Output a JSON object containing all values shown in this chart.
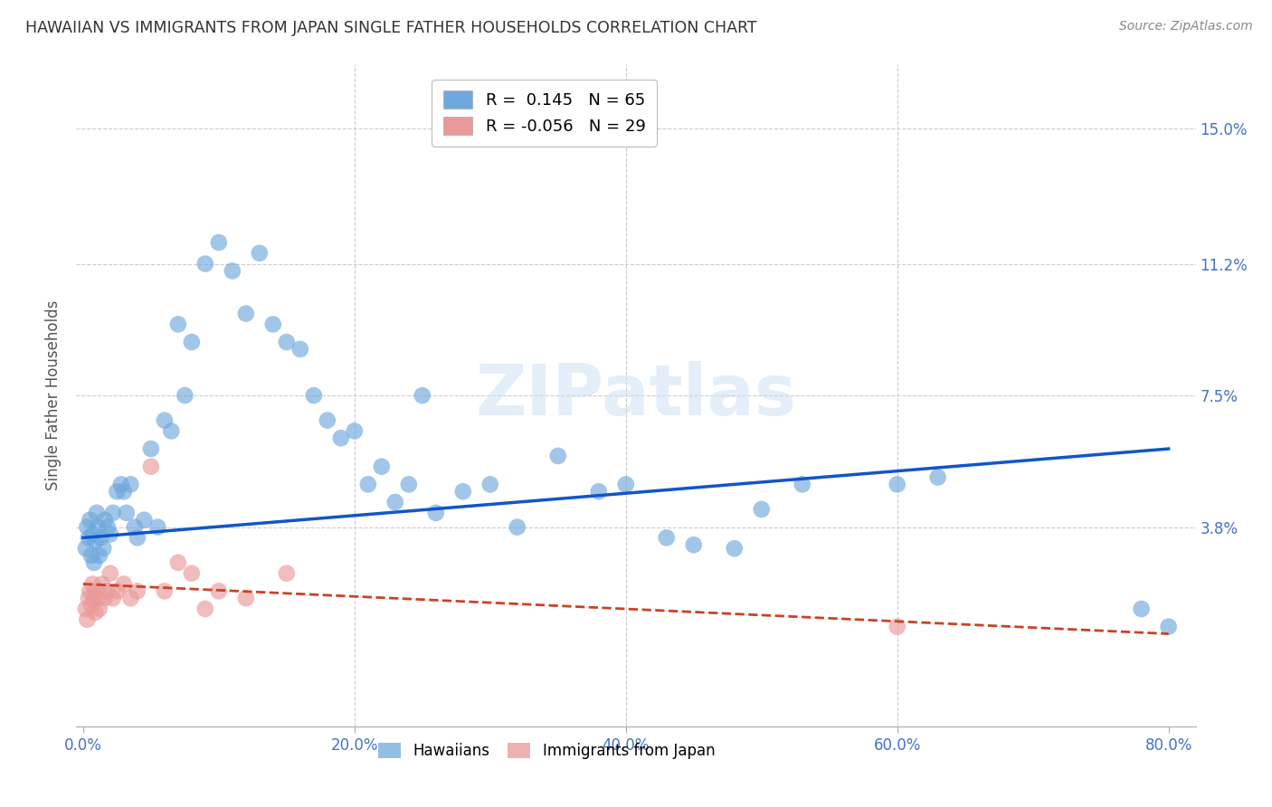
{
  "title": "HAWAIIAN VS IMMIGRANTS FROM JAPAN SINGLE FATHER HOUSEHOLDS CORRELATION CHART",
  "source": "Source: ZipAtlas.com",
  "ylabel": "Single Father Households",
  "hawaiian_color": "#6fa8dc",
  "japan_color": "#ea9999",
  "trendline_hawaii_color": "#1155cc",
  "trendline_japan_color": "#cc4125",
  "legend_R_hawaii": "R =  0.145",
  "legend_N_hawaii": "N = 65",
  "legend_R_japan": "R = -0.056",
  "legend_N_japan": "N = 29",
  "watermark": "ZIPatlas",
  "hawaiian_x": [
    0.002,
    0.003,
    0.004,
    0.005,
    0.006,
    0.007,
    0.008,
    0.009,
    0.01,
    0.011,
    0.012,
    0.013,
    0.015,
    0.016,
    0.018,
    0.02,
    0.022,
    0.025,
    0.028,
    0.03,
    0.032,
    0.035,
    0.038,
    0.04,
    0.045,
    0.05,
    0.055,
    0.06,
    0.065,
    0.07,
    0.075,
    0.08,
    0.09,
    0.1,
    0.11,
    0.12,
    0.13,
    0.14,
    0.15,
    0.16,
    0.17,
    0.18,
    0.19,
    0.2,
    0.21,
    0.22,
    0.23,
    0.24,
    0.25,
    0.26,
    0.28,
    0.3,
    0.32,
    0.35,
    0.38,
    0.4,
    0.43,
    0.45,
    0.48,
    0.5,
    0.53,
    0.6,
    0.63,
    0.78,
    0.8
  ],
  "hawaiian_y": [
    0.032,
    0.038,
    0.035,
    0.04,
    0.03,
    0.036,
    0.028,
    0.034,
    0.042,
    0.038,
    0.03,
    0.035,
    0.032,
    0.04,
    0.038,
    0.036,
    0.042,
    0.048,
    0.05,
    0.048,
    0.042,
    0.05,
    0.038,
    0.035,
    0.04,
    0.06,
    0.038,
    0.068,
    0.065,
    0.095,
    0.075,
    0.09,
    0.112,
    0.118,
    0.11,
    0.098,
    0.115,
    0.095,
    0.09,
    0.088,
    0.075,
    0.068,
    0.063,
    0.065,
    0.05,
    0.055,
    0.045,
    0.05,
    0.075,
    0.042,
    0.048,
    0.05,
    0.038,
    0.058,
    0.048,
    0.05,
    0.035,
    0.033,
    0.032,
    0.043,
    0.05,
    0.05,
    0.052,
    0.015,
    0.01
  ],
  "japan_x": [
    0.002,
    0.003,
    0.004,
    0.005,
    0.006,
    0.007,
    0.008,
    0.009,
    0.01,
    0.011,
    0.012,
    0.014,
    0.016,
    0.018,
    0.02,
    0.022,
    0.025,
    0.03,
    0.035,
    0.04,
    0.05,
    0.06,
    0.07,
    0.08,
    0.09,
    0.1,
    0.12,
    0.15,
    0.6
  ],
  "japan_y": [
    0.015,
    0.012,
    0.018,
    0.02,
    0.016,
    0.022,
    0.018,
    0.014,
    0.02,
    0.018,
    0.015,
    0.022,
    0.018,
    0.02,
    0.025,
    0.018,
    0.02,
    0.022,
    0.018,
    0.02,
    0.055,
    0.02,
    0.028,
    0.025,
    0.015,
    0.02,
    0.018,
    0.025,
    0.01
  ],
  "xlim": [
    -0.005,
    0.82
  ],
  "ylim": [
    -0.018,
    0.168
  ],
  "x_ticks": [
    0.0,
    0.2,
    0.4,
    0.6,
    0.8
  ],
  "x_tick_labels": [
    "0.0%",
    "20.0%",
    "40.0%",
    "60.0%",
    "80.0%"
  ],
  "y_ticks": [
    0.0,
    0.038,
    0.075,
    0.112,
    0.15
  ],
  "y_tick_labels": [
    "",
    "3.8%",
    "7.5%",
    "11.2%",
    "15.0%"
  ],
  "tick_color": "#4472c4",
  "grid_color": "#cccccc",
  "title_color": "#333333",
  "source_color": "#888888",
  "ylabel_color": "#555555"
}
